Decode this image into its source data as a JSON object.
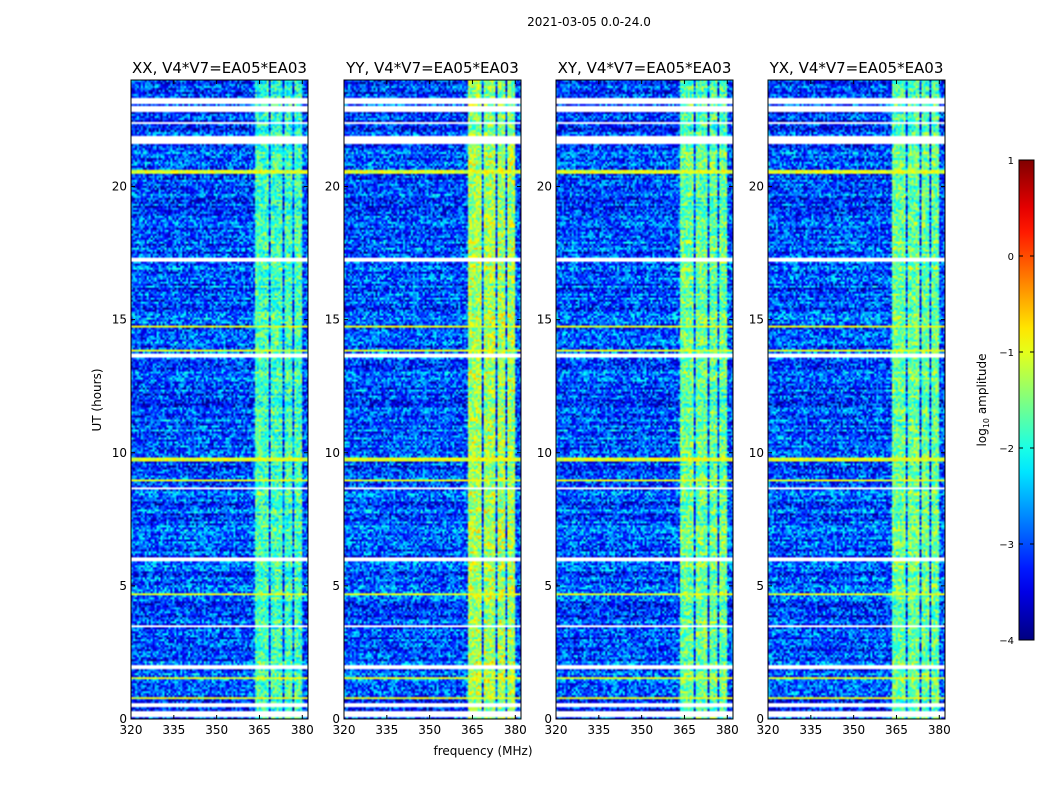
{
  "title": "2021-03-05 0.0-24.0",
  "xlabel": "frequency (MHz)",
  "ylabel": "UT (hours)",
  "colorbar": {
    "label": "log10 amplitude",
    "label_base": "log",
    "label_sub": "10",
    "label_rest": " amplitude",
    "ticks": [
      {
        "value": 1,
        "label": "1"
      },
      {
        "value": 0,
        "label": "0"
      },
      {
        "value": -1,
        "label": "−1"
      },
      {
        "value": -2,
        "label": "−2"
      },
      {
        "value": -3,
        "label": "−3"
      },
      {
        "value": -4,
        "label": "−4"
      }
    ],
    "range": [
      -4,
      1
    ],
    "colormap": "jet"
  },
  "chart_data": {
    "type": "heatmap",
    "title": "2021-03-05 0.0-24.0",
    "xlabel": "frequency (MHz)",
    "ylabel": "UT (hours)",
    "xlim": [
      320,
      382
    ],
    "ylim": [
      0,
      24
    ],
    "xticks": [
      {
        "value": 320,
        "label": "320"
      },
      {
        "value": 335,
        "label": "335"
      },
      {
        "value": 350,
        "label": "350"
      },
      {
        "value": 365,
        "label": "365"
      },
      {
        "value": 380,
        "label": "380"
      }
    ],
    "yticks": [
      {
        "value": 0,
        "label": "0"
      },
      {
        "value": 5,
        "label": "5"
      },
      {
        "value": 10,
        "label": "10"
      },
      {
        "value": 15,
        "label": "15"
      },
      {
        "value": 20,
        "label": "20"
      }
    ],
    "value_range": [
      -4,
      1
    ],
    "background_level": -3.0,
    "panels": [
      {
        "name": "XX",
        "title": "XX, V4*V7=EA05*EA03",
        "band_level": -1.8
      },
      {
        "name": "YY",
        "title": "YY, V4*V7=EA05*EA03",
        "band_level": -1.3
      },
      {
        "name": "XY",
        "title": "XY, V4*V7=EA05*EA03",
        "band_level": -1.6
      },
      {
        "name": "YX",
        "title": "YX, V4*V7=EA05*EA03",
        "band_level": -1.6
      }
    ],
    "rfi_band_MHz": [
      [
        363.5,
        368
      ],
      [
        369,
        373
      ],
      [
        374,
        376.5
      ],
      [
        377,
        380
      ]
    ],
    "flagged_UT_hours": [
      [
        0.1,
        0.3
      ],
      [
        0.45,
        0.6
      ],
      [
        1.9,
        2.0
      ],
      [
        3.45,
        3.55
      ],
      [
        5.95,
        6.05
      ],
      [
        8.6,
        8.7
      ],
      [
        13.55,
        13.7
      ],
      [
        17.2,
        17.3
      ],
      [
        21.6,
        21.9
      ],
      [
        22.35,
        22.45
      ],
      [
        22.8,
        23.0
      ],
      [
        23.1,
        23.3
      ]
    ],
    "bright_UT_hours": [
      [
        0.75,
        0.85
      ],
      [
        1.5,
        1.6
      ],
      [
        4.65,
        4.75
      ],
      [
        8.9,
        9.0
      ],
      [
        9.7,
        9.8
      ],
      [
        13.8,
        13.9
      ],
      [
        14.7,
        14.8
      ],
      [
        20.5,
        20.6
      ]
    ]
  }
}
